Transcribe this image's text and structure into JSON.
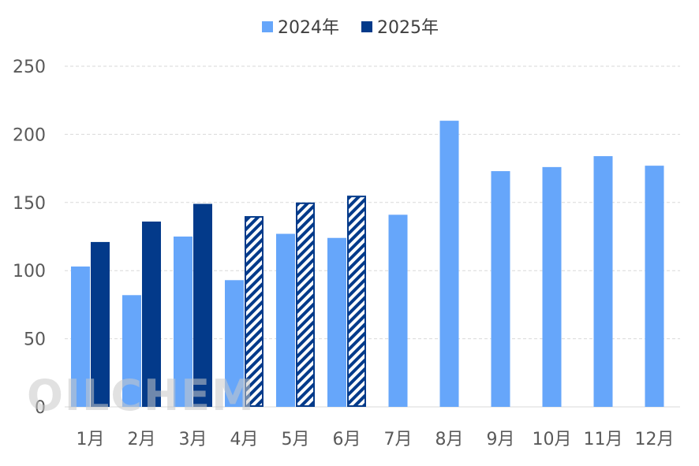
{
  "watermark": "OILCHEM",
  "colors": {
    "series_2024": "#66a6fa",
    "series_2025": "#033a8a",
    "grid": "#d9d9d9"
  },
  "chart_data": {
    "type": "bar",
    "categories": [
      "1月",
      "2月",
      "3月",
      "4月",
      "5月",
      "6月",
      "7月",
      "8月",
      "9月",
      "10月",
      "11月",
      "12月"
    ],
    "series": [
      {
        "name": "2024年",
        "values": [
          103,
          82,
          125,
          93,
          127,
          124,
          141,
          210,
          173,
          176,
          184,
          177
        ]
      },
      {
        "name": "2025年",
        "values": [
          121,
          136,
          149,
          140,
          150,
          155,
          null,
          null,
          null,
          null,
          null,
          null
        ],
        "hatched": [
          false,
          false,
          false,
          true,
          true,
          true,
          false,
          false,
          false,
          false,
          false,
          false
        ]
      }
    ],
    "title": "",
    "xlabel": "",
    "ylabel": "",
    "ylim": [
      0,
      250
    ],
    "yticks": [
      0,
      50,
      100,
      150,
      200,
      250
    ],
    "grid": true,
    "legend": "top-center"
  }
}
